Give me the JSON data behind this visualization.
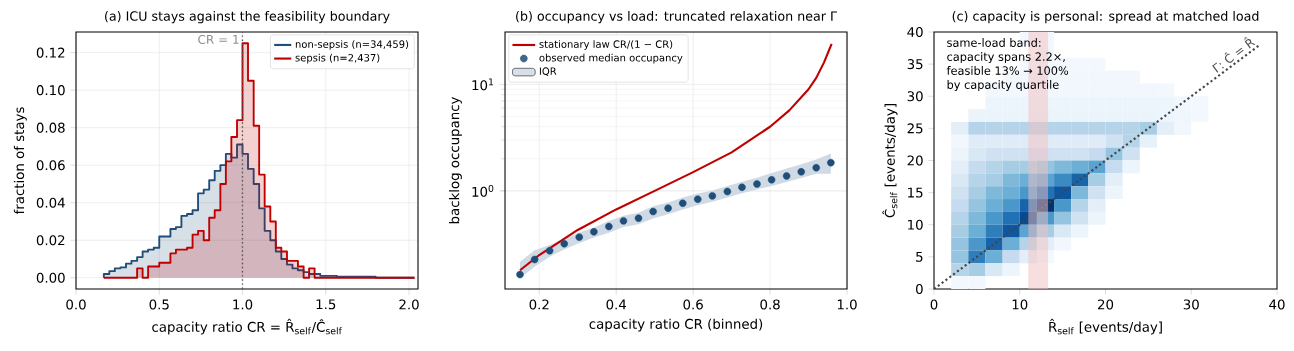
{
  "chart_data": [
    {
      "type": "histogram",
      "title": "(a) ICU stays against the feasibility boundary",
      "xlabel": "capacity ratio  CR = R̂$_{self}$/Ĉ$_{self}$",
      "ylabel": "fraction of stays",
      "bins": [
        0.167,
        0.2,
        0.233,
        0.267,
        0.3,
        0.333,
        0.367,
        0.4,
        0.433,
        0.467,
        0.5,
        0.533,
        0.567,
        0.6,
        0.633,
        0.667,
        0.7,
        0.733,
        0.767,
        0.8,
        0.833,
        0.867,
        0.9,
        0.933,
        0.967,
        1.0,
        1.033,
        1.067,
        1.1,
        1.133,
        1.167,
        1.2,
        1.233,
        1.267,
        1.3,
        1.333,
        1.367,
        1.4,
        1.433,
        1.467,
        1.5,
        1.533,
        1.567,
        1.6,
        1.633,
        1.667,
        1.7,
        1.733,
        1.767,
        1.8,
        1.833,
        1.867,
        1.9,
        1.933,
        1.967,
        2.0,
        2.033
      ],
      "series": [
        {
          "name": "non-sepsis (n=34,459)",
          "color": "#1f4e79",
          "values": [
            0.002,
            0.0035,
            0.005,
            0.0055,
            0.0075,
            0.009,
            0.011,
            0.014,
            0.015,
            0.016,
            0.022,
            0.022,
            0.026,
            0.027,
            0.033,
            0.034,
            0.036,
            0.045,
            0.047,
            0.052,
            0.057,
            0.06,
            0.066,
            0.064,
            0.071,
            0.066,
            0.058,
            0.05,
            0.037,
            0.025,
            0.02,
            0.014,
            0.01,
            0.007,
            0.005,
            0.004,
            0.003,
            0.002,
            0.002,
            0.001,
            0.001,
            0.001,
            0.0005,
            0.0005,
            0.0005,
            0.0005,
            0.0005,
            0.0005,
            0.0005,
            0,
            0,
            0,
            0,
            0,
            0,
            0
          ]
        },
        {
          "name": "sepsis (n=2,437)",
          "color": "#c00000",
          "values": [
            0,
            0,
            0,
            0,
            0,
            0,
            0.005,
            0,
            0.006,
            0.006,
            0.008,
            0.008,
            0.013,
            0.015,
            0.015,
            0.016,
            0.023,
            0.025,
            0.02,
            0.032,
            0.036,
            0.05,
            0.062,
            0.075,
            0.084,
            0.125,
            0.105,
            0.081,
            0.055,
            0.038,
            0.03,
            0.016,
            0.014,
            0.009,
            0.009,
            0.006,
            0,
            0.005,
            0,
            0,
            0,
            0,
            0,
            0,
            0,
            0,
            0,
            0,
            0,
            0,
            0,
            0,
            0,
            0,
            0,
            0
          ]
        }
      ],
      "xlim": [
        0,
        2.054
      ],
      "ylim": [
        -0.006,
        0.131
      ],
      "xticks": [
        {
          "value": 0,
          "label": "0.0"
        },
        {
          "value": 0.5,
          "label": "0.5"
        },
        {
          "value": 1,
          "label": "1.0"
        },
        {
          "value": 1.5,
          "label": "1.5"
        },
        {
          "value": 2,
          "label": "2.0"
        }
      ],
      "yticks": [
        {
          "value": 0,
          "label": "0.00"
        },
        {
          "value": 0.02,
          "label": "0.02"
        },
        {
          "value": 0.04,
          "label": "0.04"
        },
        {
          "value": 0.06,
          "label": "0.06"
        },
        {
          "value": 0.08,
          "label": "0.08"
        },
        {
          "value": 0.1,
          "label": "0.10"
        },
        {
          "value": 0.12,
          "label": "0.12"
        }
      ],
      "ref_lines": [
        {
          "axis": "x",
          "value": 1,
          "label": "CR = 1",
          "color": "#555555",
          "line_style": "dotted"
        }
      ],
      "grid": true,
      "legend": "top right"
    },
    {
      "type": "line",
      "title": "(b) occupancy vs load: truncated relaxation near Γ",
      "xlabel": "capacity ratio CR (binned)",
      "ylabel": "backlog occupancy",
      "log": "y",
      "series": [
        {
          "name": "stationary law CR/(1 − CR)",
          "type": "line",
          "color": "#c00000",
          "x": [
            0.15,
            0.2,
            0.3,
            0.4,
            0.5,
            0.6,
            0.7,
            0.8,
            0.85,
            0.9,
            0.92,
            0.94,
            0.96
          ],
          "values": [
            0.18,
            0.25,
            0.43,
            0.67,
            1.0,
            1.5,
            2.3,
            4.0,
            5.7,
            9.0,
            11.5,
            16,
            24
          ]
        },
        {
          "name": "observed median occupancy",
          "type": "scatter",
          "marker": "circle",
          "color": "#1f4e79",
          "x": [
            0.15,
            0.188,
            0.227,
            0.265,
            0.304,
            0.342,
            0.381,
            0.419,
            0.458,
            0.496,
            0.535,
            0.573,
            0.612,
            0.65,
            0.689,
            0.727,
            0.766,
            0.804,
            0.843,
            0.881,
            0.92,
            0.958
          ],
          "values": [
            0.164,
            0.227,
            0.274,
            0.319,
            0.368,
            0.413,
            0.463,
            0.523,
            0.554,
            0.64,
            0.688,
            0.766,
            0.835,
            0.898,
            0.986,
            1.08,
            1.16,
            1.27,
            1.38,
            1.51,
            1.65,
            1.84
          ]
        },
        {
          "name": "IQR",
          "type": "area",
          "color": "#d0dae5",
          "values": [
            null,
            null,
            null,
            null,
            null,
            null,
            null,
            null,
            null,
            null,
            null,
            null,
            null,
            null,
            null,
            null,
            null,
            null,
            null,
            null,
            null,
            null
          ],
          "x": [
            0.15,
            0.188,
            0.227,
            0.265,
            0.304,
            0.342,
            0.381,
            0.419,
            0.458,
            0.496,
            0.535,
            0.573,
            0.612,
            0.65,
            0.689,
            0.727,
            0.766,
            0.804,
            0.843,
            0.881,
            0.92,
            0.958
          ],
          "lower": [
            0.151,
            0.194,
            0.241,
            0.282,
            0.325,
            0.365,
            0.404,
            0.459,
            0.487,
            0.55,
            0.604,
            0.668,
            0.734,
            0.789,
            0.866,
            0.951,
            1.03,
            1.11,
            1.21,
            1.32,
            1.45,
            1.45
          ],
          "upper": [
            0.216,
            0.278,
            0.31,
            0.355,
            0.407,
            0.453,
            0.523,
            0.583,
            0.622,
            0.718,
            0.777,
            0.866,
            0.944,
            1.01,
            1.11,
            1.22,
            1.33,
            1.47,
            1.62,
            1.78,
            1.97,
            2.24
          ]
        }
      ],
      "xlim": [
        0.111,
        1.0
      ],
      "ylim": [
        0.12,
        31
      ],
      "xticks": [
        0.2,
        0.4,
        0.6,
        0.8,
        {
          "value": 1.0,
          "label": "1.0"
        }
      ],
      "yticks": [
        {
          "value": 1,
          "label": "10$^{0}$"
        },
        {
          "value": 10,
          "label": "10$^{1}$"
        }
      ],
      "grid": true,
      "legend": "top left"
    },
    {
      "type": "scatter",
      "title": "(c) capacity is personal: spread at matched load",
      "xlabel": "R̂$_{self}$  [events/day]",
      "ylabel": "Ĉ$_{self}$  [events/day]",
      "series": [
        {
          "marker": "square",
          "x": [
            11,
            13
          ],
          "values": [
            39,
            39
          ],
          "colors": [
            "#f3f8fe",
            "#f3f8fe"
          ]
        },
        {
          "marker": "square",
          "x": [
            13
          ],
          "values": [
            37
          ],
          "colors": [
            "#f3f8fe"
          ]
        },
        {
          "marker": "square",
          "x": [
            11,
            13,
            15,
            17,
            19
          ],
          "values": [
            35,
            35,
            35,
            35,
            35
          ],
          "colors": [
            "#f3f8fe",
            "#f3f8fe",
            "#f3f8fe",
            "#f3f8fe",
            "#f3f8fe"
          ]
        },
        {
          "marker": "square",
          "x": [
            9,
            11,
            13,
            15,
            17,
            19,
            21,
            23
          ],
          "values": [
            33,
            33,
            33,
            33,
            33,
            33,
            33,
            33
          ],
          "colors": [
            "#f1f7fd",
            "#f1f7fd",
            "#f1f7fd",
            "#f1f7fd",
            "#f1f7fd",
            "#f1f7fd",
            "#f1f7fd",
            "#f1f7fd"
          ]
        },
        {
          "marker": "square",
          "x": [
            7,
            9,
            11,
            13,
            15,
            17,
            19,
            21,
            23,
            25,
            27
          ],
          "values": [
            31,
            31,
            31,
            31,
            31,
            31,
            31,
            31,
            31,
            31,
            31
          ],
          "colors": [
            "#f1f7fd",
            "#f1f7fd",
            "#f1f7fd",
            "#f1f7fd",
            "#f1f7fd",
            "#f1f7fd",
            "#f1f7fd",
            "#f1f7fd",
            "#f1f7fd",
            "#f1f7fd",
            "#f3f8fe"
          ]
        },
        {
          "marker": "square",
          "x": [
            7,
            9,
            11,
            13,
            15,
            17,
            19,
            21,
            23,
            25,
            27,
            29,
            31
          ],
          "values": [
            29,
            29,
            29,
            29,
            29,
            29,
            29,
            29,
            29,
            29,
            29,
            29,
            29
          ],
          "colors": [
            "#edf5fc",
            "#edf5fc",
            "#edf5fc",
            "#edf5fc",
            "#edf5fc",
            "#edf5fc",
            "#edf5fc",
            "#edf5fc",
            "#edf5fc",
            "#edf5fc",
            "#edf5fc",
            "#f1f7fd",
            "#f3f8fe"
          ]
        },
        {
          "marker": "square",
          "x": [
            5,
            7,
            9,
            11,
            13,
            15,
            17,
            19,
            21,
            23,
            25,
            27,
            29,
            31
          ],
          "values": [
            27,
            27,
            27,
            27,
            27,
            27,
            27,
            27,
            27,
            27,
            27,
            27,
            27,
            27
          ],
          "colors": [
            "#ebf3fb",
            "#ebf3fb",
            "#ebf3fb",
            "#ebf3fb",
            "#ebf3fb",
            "#ebf3fb",
            "#ebf3fb",
            "#ebf3fb",
            "#ebf3fb",
            "#ebf3fb",
            "#ebf3fb",
            "#edf5fc",
            "#eff6fc",
            "#f3f8fe"
          ]
        },
        {
          "marker": "square",
          "x": [
            3,
            5,
            7,
            9,
            11,
            13,
            15,
            17,
            19,
            21,
            23,
            25,
            27,
            29
          ],
          "values": [
            25,
            25,
            25,
            25,
            25,
            25,
            25,
            25,
            25,
            25,
            25,
            25,
            25,
            25
          ],
          "colors": [
            "#e3eef9",
            "#b6d4e9",
            "#b6d4e9",
            "#b6d4e9",
            "#b6d4e9",
            "#b6d4e9",
            "#b6d4e9",
            "#b6d4e9",
            "#b6d4e9",
            "#b6d4e9",
            "#b6d4e9",
            "#a6cde4",
            "#e3eef9",
            "#f1f7fd"
          ]
        },
        {
          "marker": "square",
          "x": [
            3,
            5,
            7,
            9,
            11,
            13,
            15,
            17,
            19,
            21,
            23,
            25
          ],
          "values": [
            23,
            23,
            23,
            23,
            23,
            23,
            23,
            23,
            23,
            23,
            23,
            23
          ],
          "colors": [
            "#f1f7fd",
            "#dfecf7",
            "#dfecf7",
            "#dfecf7",
            "#dfecf7",
            "#dfecf7",
            "#dfecf7",
            "#dfecf7",
            "#dfecf7",
            "#d0e1f2",
            "#b6d4e9",
            "#e7f1fa"
          ]
        },
        {
          "marker": "square",
          "x": [
            3,
            5,
            7,
            9,
            11,
            13,
            15,
            17,
            19,
            21,
            23
          ],
          "values": [
            21,
            21,
            21,
            21,
            21,
            21,
            21,
            21,
            21,
            21,
            21
          ],
          "colors": [
            "#edf5fc",
            "#d9e8f5",
            "#d0e1f2",
            "#d0e1f2",
            "#d0e1f2",
            "#d0e1f2",
            "#d0e1f2",
            "#d0e1f2",
            "#c6dbef",
            "#94c4df",
            "#d0e1f2"
          ]
        },
        {
          "marker": "square",
          "x": [
            3,
            5,
            7,
            9,
            11,
            13,
            15,
            17,
            19,
            21,
            23
          ],
          "values": [
            19,
            19,
            19,
            19,
            19,
            19,
            19,
            19,
            19,
            19,
            19
          ],
          "colors": [
            "#e3eef9",
            "#c6dbef",
            "#b6d4e9",
            "#a6cde4",
            "#a6cde4",
            "#94c4df",
            "#7fb9da",
            "#6baed6",
            "#5ba3d0",
            "#c6dbef",
            "#edf5fc"
          ]
        },
        {
          "marker": "square",
          "x": [
            3,
            5,
            7,
            9,
            11,
            13,
            15,
            17,
            19,
            21
          ],
          "values": [
            17,
            17,
            17,
            17,
            17,
            17,
            17,
            17,
            17,
            17
          ],
          "colors": [
            "#d9e8f5",
            "#b6d4e9",
            "#a6cde4",
            "#7fb9da",
            "#6baed6",
            "#5ba3d0",
            "#3b8bc3",
            "#1764ab",
            "#a6cde4",
            "#e3eef9"
          ]
        },
        {
          "marker": "square",
          "x": [
            3,
            5,
            7,
            9,
            11,
            13,
            15,
            17,
            19,
            21
          ],
          "values": [
            15,
            15,
            15,
            15,
            15,
            15,
            15,
            15,
            15,
            15
          ],
          "colors": [
            "#d0e1f2",
            "#a6cde4",
            "#7fb9da",
            "#6baed6",
            "#4a98c9",
            "#2171b5",
            "#0d57a1",
            "#7fb9da",
            "#d0e1f2",
            "#edf5fc"
          ]
        },
        {
          "marker": "square",
          "x": [
            3,
            5,
            7,
            9,
            11,
            13,
            15,
            17,
            19
          ],
          "values": [
            13,
            13,
            13,
            13,
            13,
            13,
            13,
            13,
            13
          ],
          "colors": [
            "#c6dbef",
            "#94c4df",
            "#6baed6",
            "#4a98c9",
            "#1764ab",
            "#08306b",
            "#4a98c9",
            "#b6d4e9",
            "#e3eef9"
          ]
        },
        {
          "marker": "square",
          "x": [
            3,
            5,
            7,
            9,
            11,
            13,
            15,
            17,
            19
          ],
          "values": [
            11,
            11,
            11,
            11,
            11,
            11,
            11,
            11,
            11
          ],
          "colors": [
            "#b6d4e9",
            "#7fb9da",
            "#4a98c9",
            "#2171b5",
            "#084a92",
            "#4a98c9",
            "#94c4df",
            "#d0e1f2",
            "#edf5fc"
          ]
        },
        {
          "marker": "square",
          "x": [
            3,
            5,
            7,
            9,
            11,
            13,
            15,
            17
          ],
          "values": [
            9,
            9,
            9,
            9,
            9,
            9,
            9,
            9
          ],
          "colors": [
            "#a6cde4",
            "#6baed6",
            "#2e7ebc",
            "#0d57a1",
            "#5ba3d0",
            "#a6cde4",
            "#d9e8f5",
            "#edf5fc"
          ]
        },
        {
          "marker": "square",
          "x": [
            3,
            5,
            7,
            9,
            11,
            13,
            15
          ],
          "values": [
            7,
            7,
            7,
            7,
            7,
            7,
            7
          ],
          "colors": [
            "#94c4df",
            "#4a98c9",
            "#1764ab",
            "#6baed6",
            "#b6d4e9",
            "#e3eef9",
            "#f1f7fd"
          ]
        },
        {
          "marker": "square",
          "x": [
            3,
            5,
            7,
            9,
            11,
            13
          ],
          "values": [
            5,
            5,
            5,
            5,
            5,
            5
          ],
          "colors": [
            "#94c4df",
            "#2e7ebc",
            "#6baed6",
            "#c6dbef",
            "#e3eef9",
            "#f3f8fe"
          ]
        },
        {
          "marker": "square",
          "x": [
            3,
            5,
            7,
            9
          ],
          "values": [
            3,
            3,
            3,
            3
          ],
          "colors": [
            "#b6d4e9",
            "#a6cde4",
            "#d9e8f5",
            "#edf5fc"
          ]
        },
        {
          "marker": "square",
          "x": [
            3,
            5
          ],
          "values": [
            1,
            1
          ],
          "colors": [
            "#f3f8fe",
            "#f3f8fe"
          ]
        },
        {
          "type": "line",
          "name": "Γ: Ĉ = R̂",
          "color": "#444444",
          "line_style": "dotted",
          "x": [
            0,
            38
          ],
          "values": [
            0,
            38
          ]
        }
      ],
      "bands": [
        {
          "axis": "x",
          "from": 11,
          "to": 13.3,
          "color": "#f2c0c0"
        }
      ],
      "annotations": [
        "same-load band:",
        "capacity spans 2.2×,",
        "feasible 13% → 100%",
        "by capacity quartile"
      ],
      "xlim": [
        0,
        40
      ],
      "ylim": [
        0,
        40
      ],
      "xticks": [
        0,
        10,
        20,
        30,
        40
      ],
      "yticks": [
        0,
        5,
        10,
        15,
        20,
        25,
        30,
        35,
        40
      ]
    }
  ]
}
